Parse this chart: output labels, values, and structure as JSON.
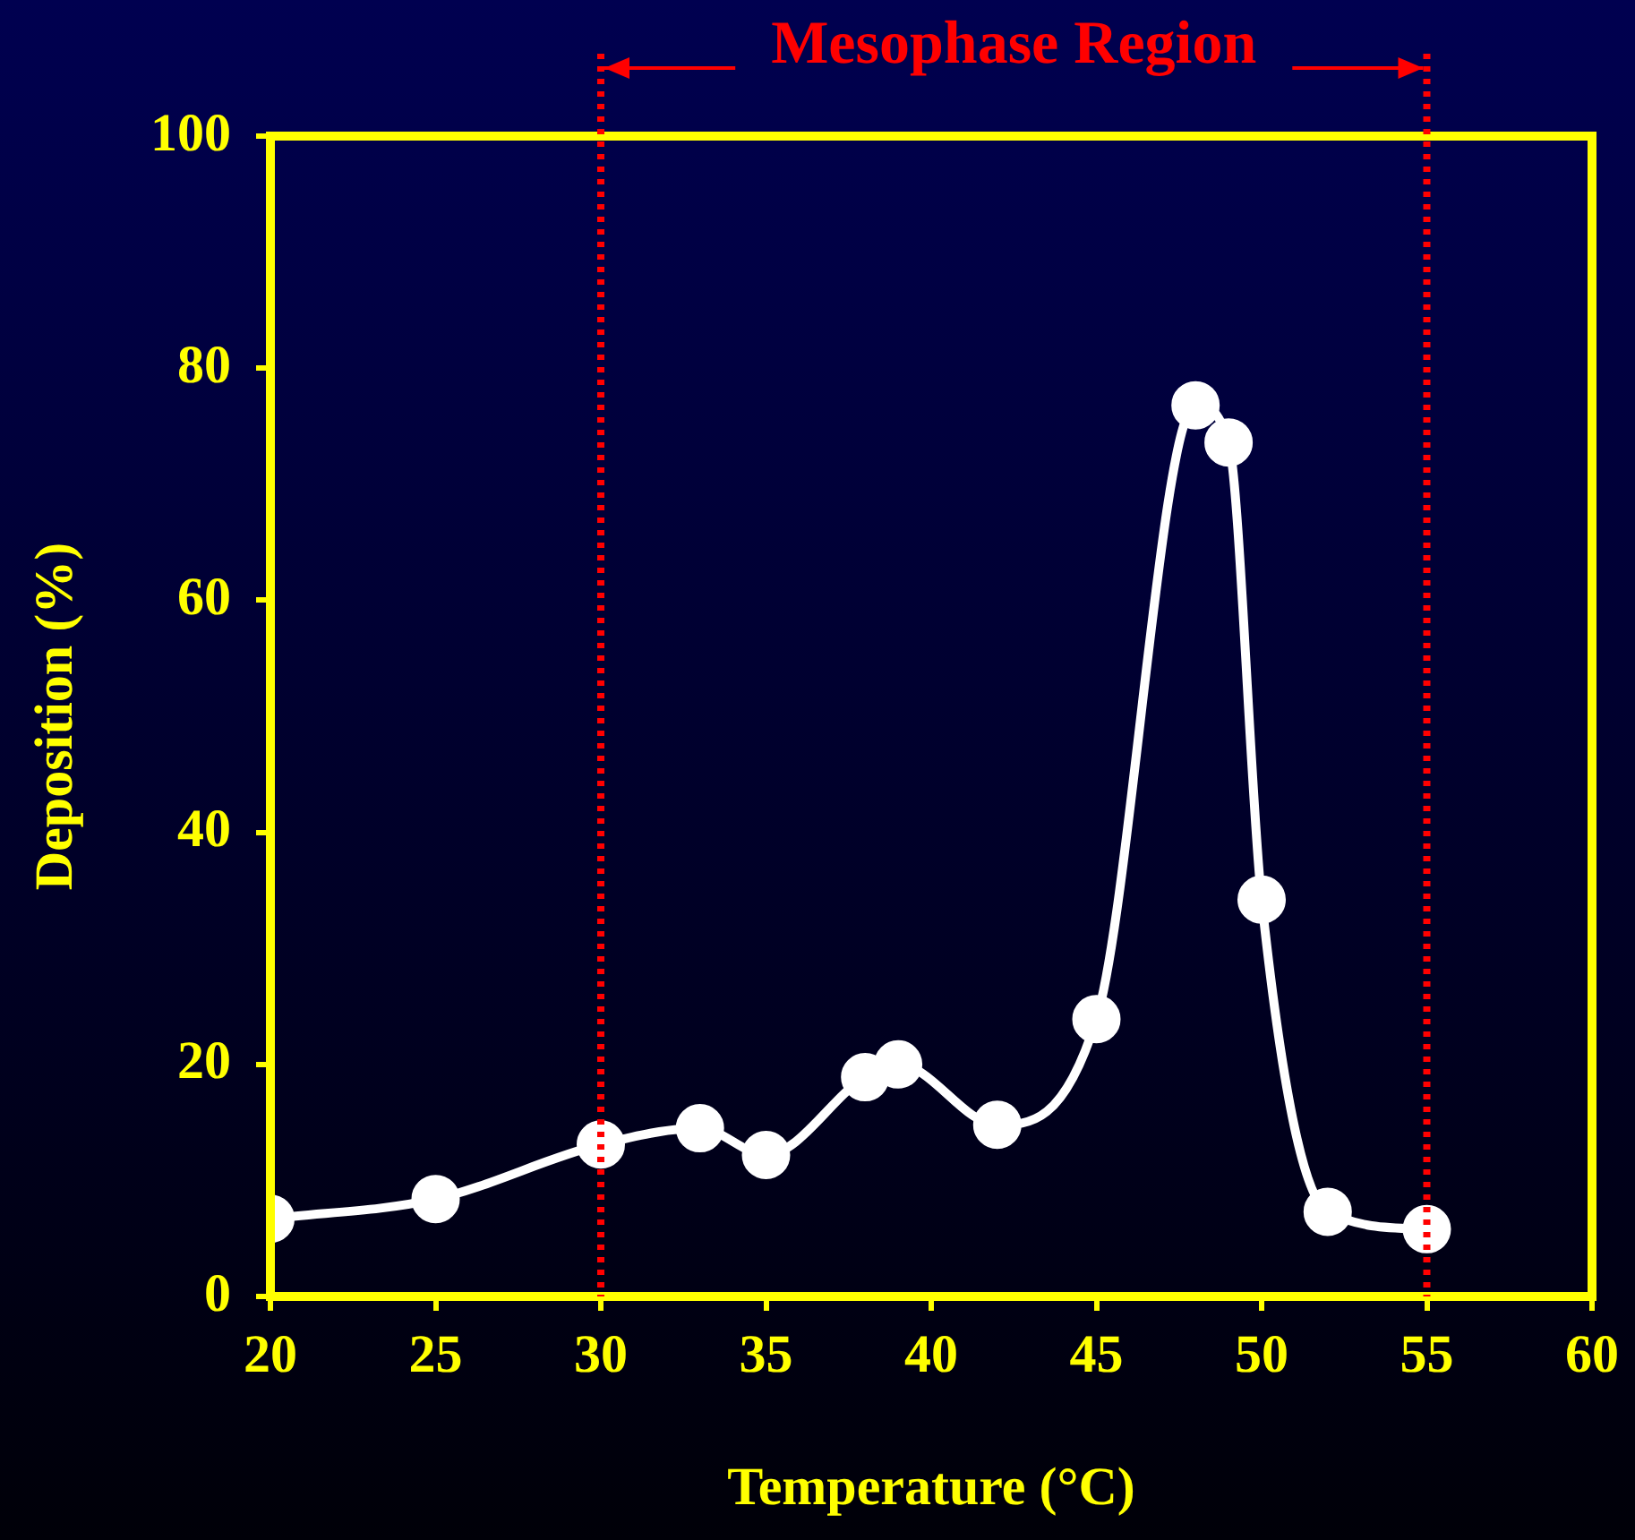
{
  "chart_data": {
    "type": "line",
    "xlabel": "Temperature (°C)",
    "ylabel": "Deposition (%)",
    "x": [
      20,
      25,
      30,
      33,
      35,
      38,
      39,
      42,
      45,
      48,
      49,
      50,
      52,
      55
    ],
    "series": [
      {
        "color": "#ffffff",
        "values": [
          6.7,
          8.4,
          13.1,
          14.5,
          12.2,
          18.9,
          20.0,
          14.8,
          23.9,
          76.8,
          73.6,
          34.2,
          7.3,
          5.8
        ]
      }
    ],
    "xlim": [
      20,
      60
    ],
    "xticks": [
      20,
      25,
      30,
      35,
      40,
      45,
      50,
      55,
      60
    ],
    "ylim": [
      0,
      100
    ],
    "yticks": [
      0,
      20,
      40,
      60,
      80,
      100
    ],
    "grid": false,
    "legend": false,
    "marker": "circle",
    "line_style": "solid",
    "ref_lines": [
      {
        "axis": "x",
        "value": 30,
        "color": "#ff0000",
        "line_style": "dotted"
      },
      {
        "axis": "x",
        "value": 55,
        "color": "#ff0000",
        "line_style": "dotted"
      }
    ],
    "annotations": [
      "Mesophase Region"
    ]
  }
}
